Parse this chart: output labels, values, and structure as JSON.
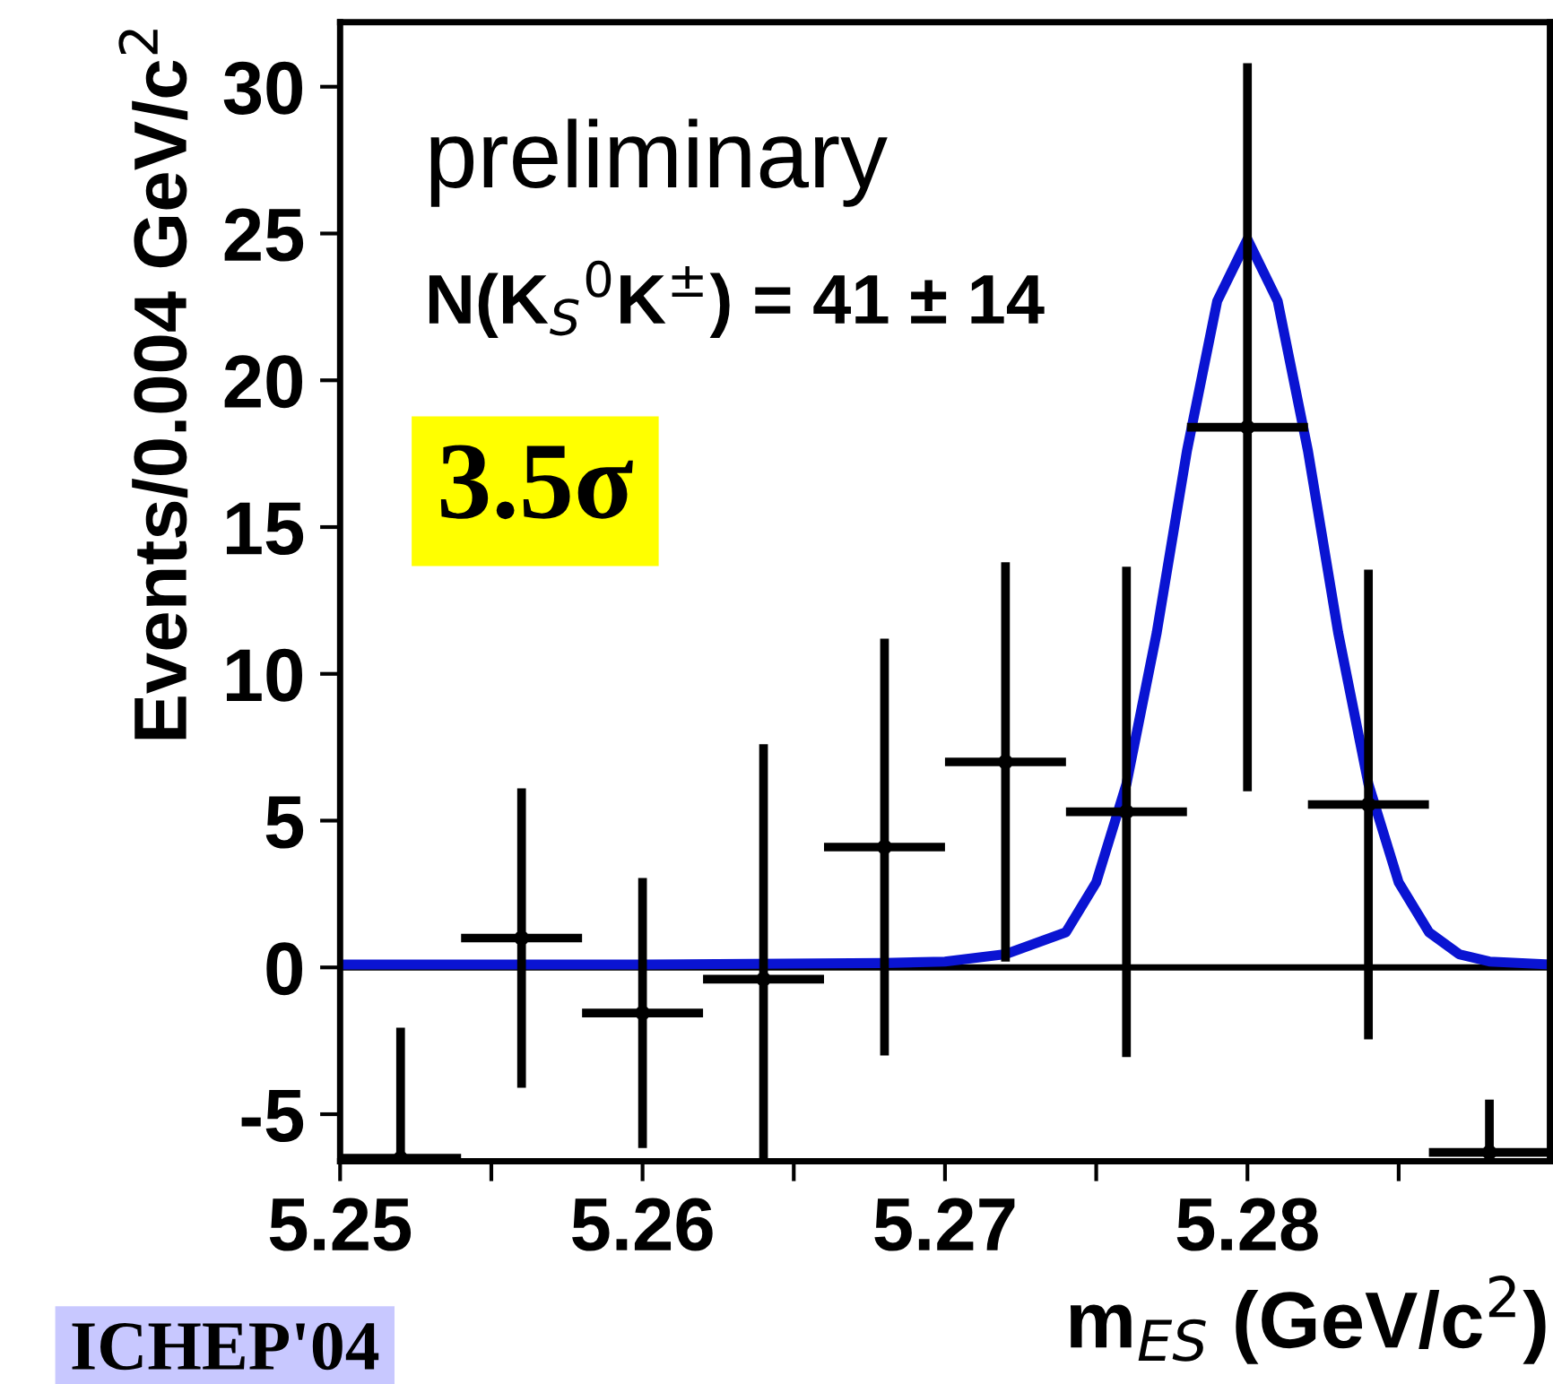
{
  "chart_data": {
    "type": "scatter",
    "xlabel": "m$_{ES}$ (GeV/c$^{2}$)",
    "ylabel": "Events/0.004 GeV/c$^{2}$",
    "annotations": [
      "preliminary",
      "N(K$_{S}$$^{0}$K$^{±}$) = 41 ± 14",
      "3.5σ",
      "ICHEP'04"
    ],
    "xlim": [
      5.25,
      5.29
    ],
    "ylim": [
      -6.6,
      32.2
    ],
    "xticks": [
      5.25,
      {
        "value": 5.255,
        "label": null
      },
      5.26,
      {
        "value": 5.265,
        "label": null
      },
      5.27,
      {
        "value": 5.275,
        "label": null
      },
      5.28,
      {
        "value": 5.285,
        "label": null
      }
    ],
    "yticks": [
      -5,
      0,
      5,
      10,
      15,
      20,
      25,
      30
    ],
    "grid": false,
    "legend": false,
    "marker": "circle",
    "ref_lines": [
      {
        "axis": "y",
        "value": 0,
        "color": "#000000"
      }
    ],
    "series": [
      {
        "color": "#000000",
        "x": [
          5.252,
          5.256,
          5.26,
          5.264,
          5.268,
          5.272,
          5.276,
          5.28,
          5.284,
          5.288
        ],
        "values": [
          -6.5,
          1.0,
          -1.55,
          -0.4,
          4.1,
          7.0,
          5.3,
          18.4,
          5.55,
          -6.3
        ],
        "errors": [
          [
            -6.6,
            -2.05
          ],
          5.1,
          4.6,
          [
            -6.6,
            7.6
          ],
          7.1,
          6.8,
          8.35,
          12.4,
          8.0,
          [
            -6.6,
            -4.5
          ]
        ],
        "xerrors": [
          0.002,
          0.002,
          0.002,
          0.002,
          0.002,
          0.002,
          0.002,
          0.002,
          0.002,
          0.002
        ]
      },
      {
        "type": "line",
        "color": "#0a14d2",
        "marker": "none",
        "x": [
          5.25,
          5.26,
          5.268,
          5.27,
          5.272,
          5.274,
          5.275,
          5.276,
          5.277,
          5.278,
          5.279,
          5.28,
          5.281,
          5.282,
          5.283,
          5.284,
          5.285,
          5.286,
          5.287,
          5.288,
          5.29
        ],
        "values": [
          0.1,
          0.1,
          0.15,
          0.2,
          0.45,
          1.2,
          2.9,
          6.25,
          11.4,
          17.6,
          22.7,
          24.8,
          22.7,
          17.6,
          11.4,
          6.25,
          2.9,
          1.2,
          0.45,
          0.2,
          0.1
        ]
      }
    ]
  }
}
